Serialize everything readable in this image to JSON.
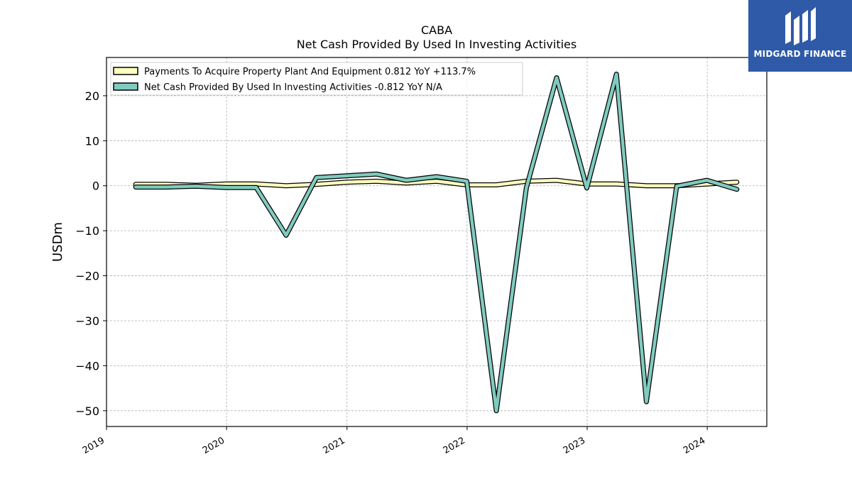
{
  "logo": {
    "text": "MIDGARD FINANCE",
    "bg_color": "#2f5aa8"
  },
  "chart_data": {
    "type": "line",
    "title": "CABA",
    "subtitle": "Net Cash Provided By Used In Investing Activities",
    "ylabel": "USDm",
    "xlabel": "",
    "xlim": [
      "2019-01-01",
      "2024-06-30"
    ],
    "ylim": [
      -53.5,
      28.5
    ],
    "yticks": [
      20,
      10,
      0,
      -10,
      -20,
      -30,
      -40,
      -50
    ],
    "ytick_labels": [
      "20",
      "10",
      "0",
      "−10",
      "−20",
      "−30",
      "−40",
      "−50"
    ],
    "xticks": [
      "2019-01-01",
      "2020-01-01",
      "2021-01-01",
      "2022-01-01",
      "2023-01-01",
      "2024-01-01"
    ],
    "xtick_labels": [
      "2019",
      "2020",
      "2021",
      "2022",
      "2023",
      "2024"
    ],
    "grid": true,
    "legend_position": "top-left",
    "x": [
      "2019-03-31",
      "2019-06-30",
      "2019-09-30",
      "2019-12-31",
      "2020-03-31",
      "2020-06-30",
      "2020-09-30",
      "2020-12-31",
      "2021-03-31",
      "2021-06-30",
      "2021-09-30",
      "2021-12-31",
      "2022-03-31",
      "2022-06-30",
      "2022-09-30",
      "2022-12-31",
      "2023-03-31",
      "2023-06-30",
      "2023-09-30",
      "2023-12-31",
      "2024-03-31"
    ],
    "series": [
      {
        "name": "Payments To Acquire Property Plant And Equipment",
        "legend_label": "Payments To Acquire Property Plant And Equipment  0.812 YoY +113.7%",
        "color": "#ffffbf",
        "values": [
          0.3,
          0.3,
          0.1,
          0.4,
          0.4,
          0.0,
          0.3,
          0.8,
          1.0,
          0.6,
          1.0,
          0.2,
          0.2,
          1.0,
          1.2,
          0.4,
          0.4,
          0.0,
          0.0,
          0.4,
          0.8
        ]
      },
      {
        "name": "Net Cash Provided By Used In Investing Activities",
        "legend_label": "Net Cash Provided By Used In Investing Activities  -0.812 YoY N/A",
        "color": "#80cbbf",
        "values": [
          -0.3,
          -0.3,
          -0.1,
          -0.4,
          -0.4,
          -11.0,
          1.8,
          2.2,
          2.6,
          1.2,
          2.0,
          1.0,
          -50.0,
          -0.5,
          24.0,
          -0.5,
          24.8,
          -48.0,
          -0.1,
          1.2,
          -0.8
        ]
      }
    ]
  }
}
